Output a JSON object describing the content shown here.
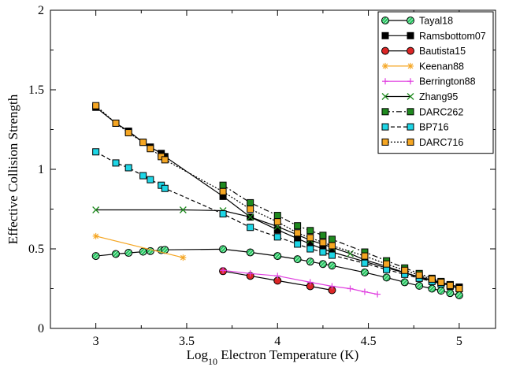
{
  "chart_data": {
    "type": "line",
    "title": "",
    "xlabel": "Log10 Electron Temperature (K)",
    "xlabel_parts": {
      "pre": "Log",
      "sub": "10",
      "post": " Electron Temperature (K)"
    },
    "ylabel": "Effective Collision Strength",
    "xlim": [
      2.75,
      5.2
    ],
    "ylim": [
      0,
      2
    ],
    "xticks": [
      3,
      3.5,
      4,
      4.5,
      5
    ],
    "xtick_labels": [
      "3",
      "3.5",
      "4",
      "4.5",
      "5"
    ],
    "yticks": [
      0,
      0.5,
      1,
      1.5,
      2
    ],
    "ytick_labels": [
      "0",
      "0.5",
      "1",
      "1.5",
      "2"
    ],
    "grid": false,
    "legend_position": "top-right",
    "series": [
      {
        "name": "Tayal18",
        "color": "#000000",
        "marker": "circle-hatched",
        "marker_color": "#22c55e",
        "dash": "",
        "x": [
          3.0,
          3.11,
          3.18,
          3.26,
          3.3,
          3.36,
          3.38,
          3.7,
          3.85,
          4.0,
          4.11,
          4.18,
          4.25,
          4.3,
          4.48,
          4.6,
          4.7,
          4.78,
          4.85,
          4.9,
          4.95,
          5.0
        ],
        "y": [
          0.455,
          0.468,
          0.475,
          0.482,
          0.486,
          0.492,
          0.494,
          0.498,
          0.478,
          0.455,
          0.435,
          0.42,
          0.405,
          0.395,
          0.352,
          0.32,
          0.29,
          0.268,
          0.25,
          0.237,
          0.222,
          0.208
        ]
      },
      {
        "name": "Ramsbottom07",
        "color": "#000000",
        "marker": "square",
        "marker_color": "#000000",
        "dash": "",
        "x": [
          3.0,
          3.11,
          3.18,
          3.26,
          3.3,
          3.36,
          3.38,
          3.7,
          3.85,
          4.0,
          4.11,
          4.18,
          4.25,
          4.3,
          4.48,
          4.6,
          4.7,
          4.78,
          4.85,
          4.9,
          4.95,
          5.0
        ],
        "y": [
          1.39,
          1.29,
          1.24,
          1.17,
          1.14,
          1.1,
          1.08,
          0.83,
          0.7,
          0.62,
          0.565,
          0.53,
          0.5,
          0.48,
          0.42,
          0.38,
          0.35,
          0.325,
          0.305,
          0.29,
          0.275,
          0.26
        ]
      },
      {
        "name": "Bautista15",
        "color": "#000000",
        "marker": "circle",
        "marker_color": "#dc2626",
        "dash": "",
        "x": [
          3.7,
          3.85,
          4.0,
          4.18,
          4.3
        ],
        "y": [
          0.36,
          0.33,
          0.3,
          0.265,
          0.24
        ]
      },
      {
        "name": "Keenan88",
        "color": "#f5a623",
        "marker": "asterisk",
        "marker_color": "#f5a623",
        "dash": "",
        "x": [
          3.0,
          3.48
        ],
        "y": [
          0.58,
          0.445
        ]
      },
      {
        "name": "Berrington88",
        "color": "#e040e0",
        "marker": "plus",
        "marker_color": "#e040e0",
        "dash": "",
        "x": [
          3.7,
          3.85,
          4.0,
          4.18,
          4.3,
          4.4,
          4.48,
          4.55
        ],
        "y": [
          0.365,
          0.345,
          0.33,
          0.29,
          0.265,
          0.25,
          0.23,
          0.215
        ]
      },
      {
        "name": "Zhang95",
        "color": "#000000",
        "marker": "x",
        "marker_color": "#1f8a1f",
        "dash": "",
        "x": [
          3.0,
          3.48,
          3.7,
          3.85,
          4.0,
          4.18,
          4.3,
          4.4,
          4.48,
          4.6,
          4.7,
          4.78,
          4.85,
          4.95
        ],
        "y": [
          0.745,
          0.745,
          0.74,
          0.7,
          0.64,
          0.555,
          0.51,
          0.47,
          0.43,
          0.39,
          0.35,
          0.32,
          0.3,
          0.27
        ]
      },
      {
        "name": "DARC262",
        "color": "#000000",
        "marker": "square",
        "marker_color": "#1f8a1f",
        "dash": "7 3 2 3",
        "x": [
          3.7,
          3.85,
          4.0,
          4.11,
          4.18,
          4.25,
          4.3,
          4.48,
          4.6,
          4.7,
          4.78,
          4.85,
          4.9,
          4.95,
          5.0
        ],
        "y": [
          0.9,
          0.79,
          0.71,
          0.645,
          0.615,
          0.585,
          0.56,
          0.48,
          0.425,
          0.38,
          0.345,
          0.315,
          0.295,
          0.275,
          0.255
        ]
      },
      {
        "name": "BP716",
        "color": "#000000",
        "marker": "square",
        "marker_color": "#1ed6e6",
        "dash": "5 3",
        "x": [
          3.0,
          3.11,
          3.18,
          3.26,
          3.3,
          3.36,
          3.38,
          3.7,
          3.85,
          4.0,
          4.11,
          4.18,
          4.25,
          4.3,
          4.48,
          4.6,
          4.7,
          4.78,
          4.85,
          4.9,
          4.95,
          5.0
        ],
        "y": [
          1.11,
          1.04,
          1.01,
          0.96,
          0.935,
          0.9,
          0.88,
          0.72,
          0.635,
          0.575,
          0.53,
          0.5,
          0.48,
          0.46,
          0.41,
          0.37,
          0.34,
          0.315,
          0.295,
          0.28,
          0.265,
          0.25
        ]
      },
      {
        "name": "DARC716",
        "color": "#000000",
        "marker": "square",
        "marker_color": "#f5a623",
        "dash": "2 2",
        "x": [
          3.0,
          3.11,
          3.18,
          3.26,
          3.3,
          3.36,
          3.38,
          3.7,
          3.85,
          4.0,
          4.11,
          4.18,
          4.25,
          4.3,
          4.48,
          4.6,
          4.7,
          4.78,
          4.85,
          4.9,
          4.95,
          5.0
        ],
        "y": [
          1.4,
          1.29,
          1.23,
          1.17,
          1.13,
          1.08,
          1.06,
          0.86,
          0.75,
          0.67,
          0.6,
          0.57,
          0.54,
          0.52,
          0.455,
          0.405,
          0.365,
          0.335,
          0.31,
          0.29,
          0.27,
          0.25
        ]
      }
    ]
  }
}
